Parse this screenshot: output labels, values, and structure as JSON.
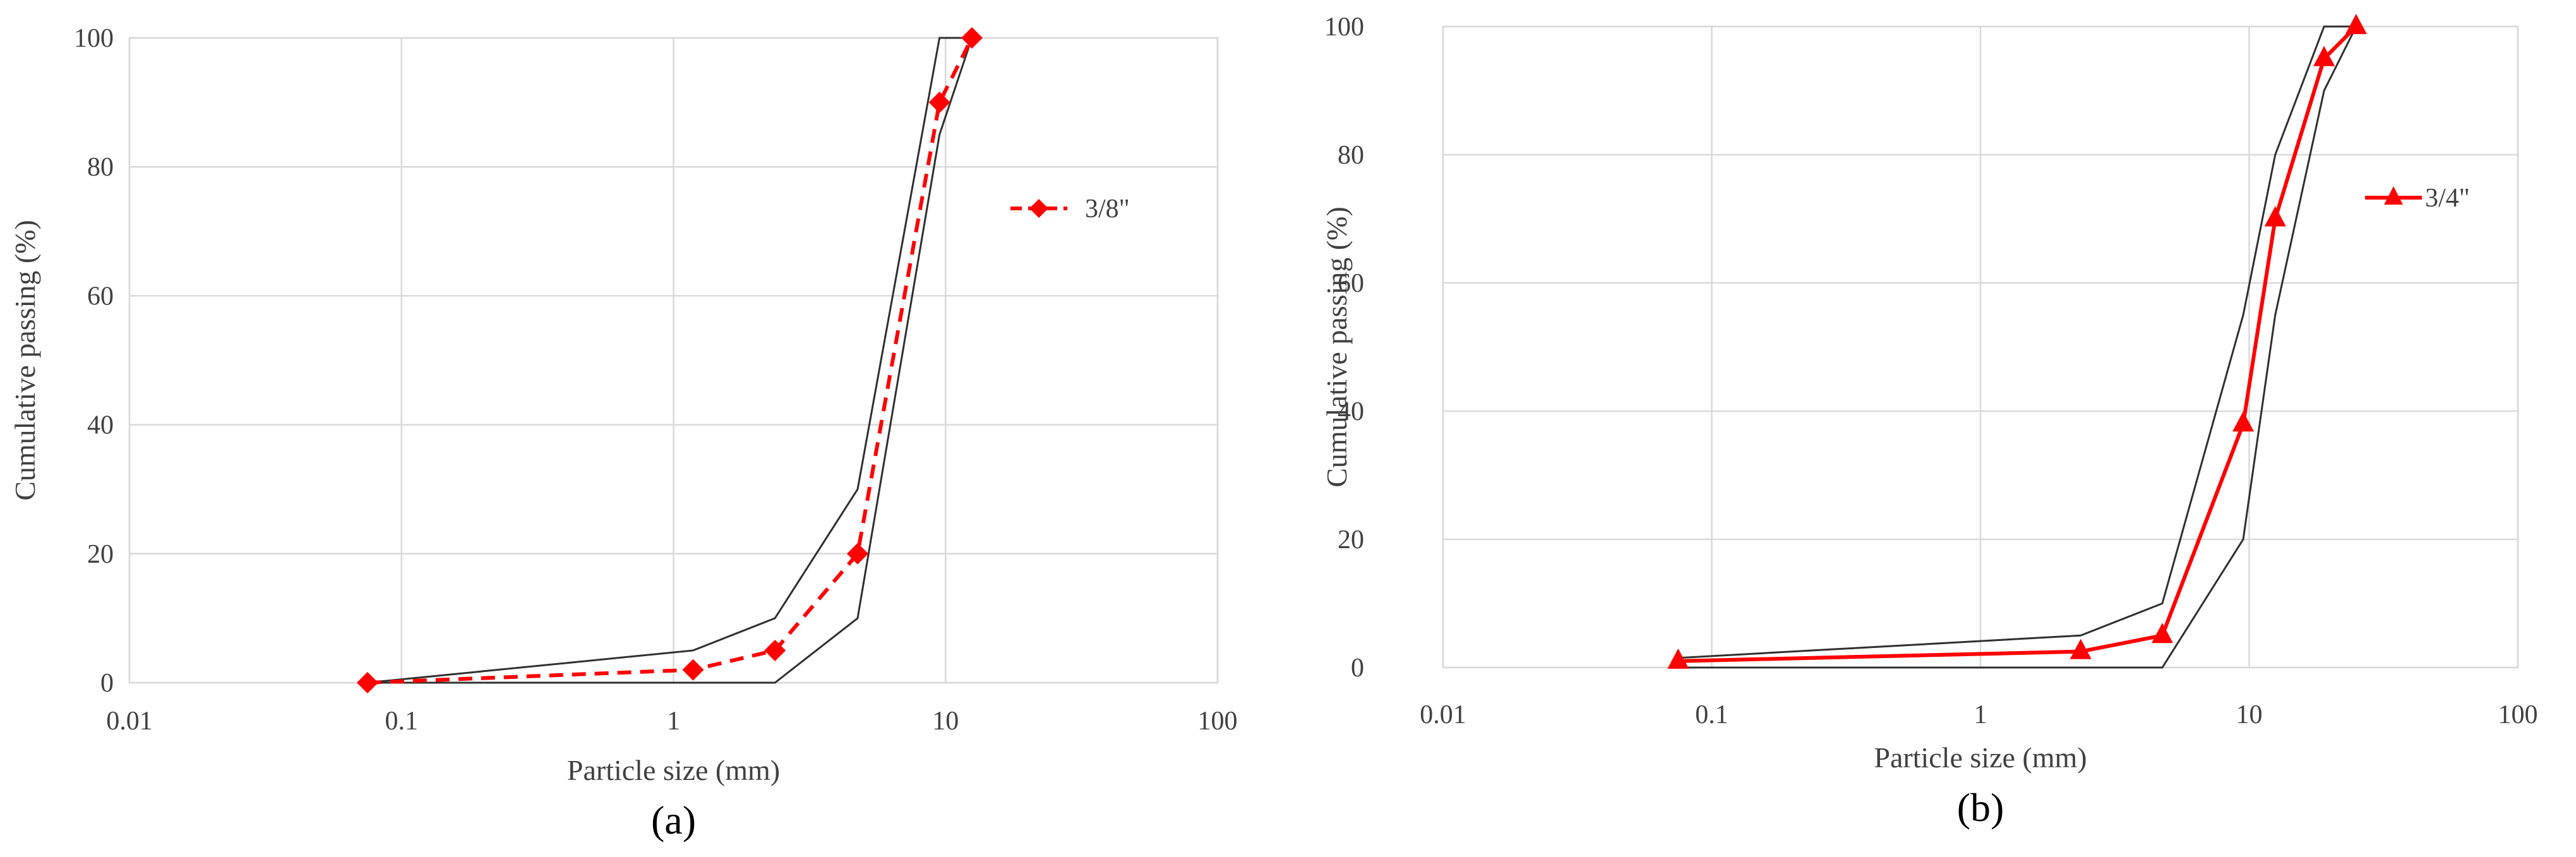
{
  "chart_data": [
    {
      "type": "line",
      "panel_label": "(a)",
      "xlabel": "Particle size (mm)",
      "ylabel": "Cumulative passing (%)",
      "xscale": "log",
      "xlim": [
        0.01,
        100
      ],
      "ylim": [
        0,
        100
      ],
      "xticks": [
        "0.01",
        "0.1",
        "1",
        "10",
        "100"
      ],
      "yticks": [
        "0",
        "20",
        "40",
        "60",
        "80",
        "100"
      ],
      "grid": true,
      "legend_position": "right",
      "series": [
        {
          "name": "3/8\"",
          "color": "#ff0000",
          "line_style": "dashed",
          "marker": "diamond",
          "x": [
            0.075,
            1.18,
            2.36,
            4.75,
            9.5,
            12.5
          ],
          "y": [
            0,
            2,
            5,
            20,
            90,
            100
          ]
        }
      ],
      "envelope": [
        {
          "role": "upper limit",
          "color": "#303030",
          "x": [
            0.075,
            1.18,
            2.36,
            4.75,
            9.5,
            12.5
          ],
          "y": [
            0,
            5,
            10,
            30,
            100,
            100
          ]
        },
        {
          "role": "lower limit",
          "color": "#303030",
          "x": [
            0.075,
            1.18,
            2.36,
            4.75,
            9.5,
            12.5
          ],
          "y": [
            0,
            0,
            0,
            10,
            85,
            100
          ]
        }
      ]
    },
    {
      "type": "line",
      "panel_label": "(b)",
      "xlabel": "Particle size (mm)",
      "ylabel": "Cumulative passing (%)",
      "xscale": "log",
      "xlim": [
        0.01,
        100
      ],
      "ylim": [
        0,
        100
      ],
      "xticks": [
        "0.01",
        "0.1",
        "1",
        "10",
        "100"
      ],
      "yticks": [
        "0",
        "20",
        "40",
        "60",
        "80",
        "100"
      ],
      "grid": true,
      "legend_position": "right",
      "series": [
        {
          "name": "3/4\"",
          "color": "#ff0000",
          "line_style": "solid",
          "marker": "triangle",
          "x": [
            0.075,
            2.36,
            4.75,
            9.5,
            12.5,
            19,
            25
          ],
          "y": [
            1,
            2.5,
            5,
            38,
            70,
            95,
            100
          ]
        }
      ],
      "envelope": [
        {
          "role": "upper limit",
          "color": "#303030",
          "x": [
            0.075,
            2.36,
            4.75,
            9.5,
            12.5,
            19,
            25
          ],
          "y": [
            1.5,
            5,
            10,
            55,
            80,
            100,
            100
          ]
        },
        {
          "role": "lower limit",
          "color": "#303030",
          "x": [
            0.075,
            2.36,
            4.75,
            9.5,
            12.5,
            19,
            25
          ],
          "y": [
            0,
            0,
            0,
            20,
            55,
            90,
            100
          ]
        }
      ]
    }
  ]
}
